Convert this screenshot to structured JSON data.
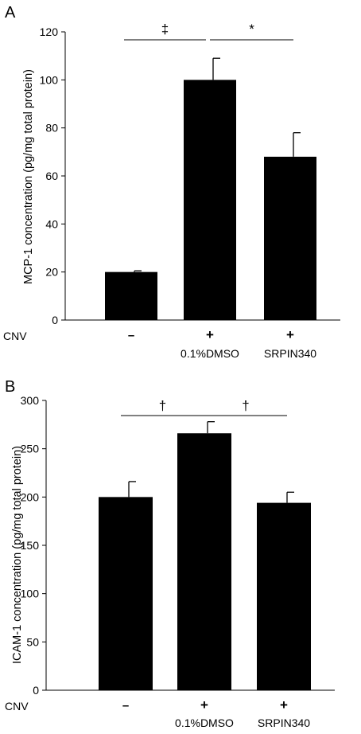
{
  "chart_data": [
    {
      "panel_label": "A",
      "type": "bar",
      "ylabel": "MCP-1 concentration (pg/mg total protein)",
      "ylim": [
        0,
        120
      ],
      "yticks": [
        0,
        20,
        40,
        60,
        80,
        100,
        120
      ],
      "row_label": "CNV",
      "cnv_marks": [
        "–",
        "+",
        "+"
      ],
      "categories": [
        "",
        "0.1%DMSO",
        "SRPIN340"
      ],
      "values": [
        20,
        100,
        68
      ],
      "errors": [
        0.5,
        9,
        10
      ],
      "significance": [
        {
          "from": 0,
          "to": 1,
          "symbol": "‡"
        },
        {
          "from": 1,
          "to": 2,
          "symbol": "*"
        }
      ],
      "grid": false,
      "bar_color": "#000000"
    },
    {
      "panel_label": "B",
      "type": "bar",
      "ylabel": "ICAM-1 concentration (pg/mg total protein)",
      "ylim": [
        0,
        300
      ],
      "yticks": [
        0,
        50,
        100,
        150,
        200,
        250,
        300
      ],
      "row_label": "CNV",
      "cnv_marks": [
        "–",
        "+",
        "+"
      ],
      "categories": [
        "",
        "0.1%DMSO",
        "SRPIN340"
      ],
      "values": [
        200,
        266,
        194
      ],
      "errors": [
        16,
        12,
        11
      ],
      "significance": [
        {
          "from": 0,
          "to": 1,
          "symbol": "†"
        },
        {
          "from": 1,
          "to": 2,
          "symbol": "†"
        }
      ],
      "grid": false,
      "bar_color": "#000000"
    }
  ]
}
